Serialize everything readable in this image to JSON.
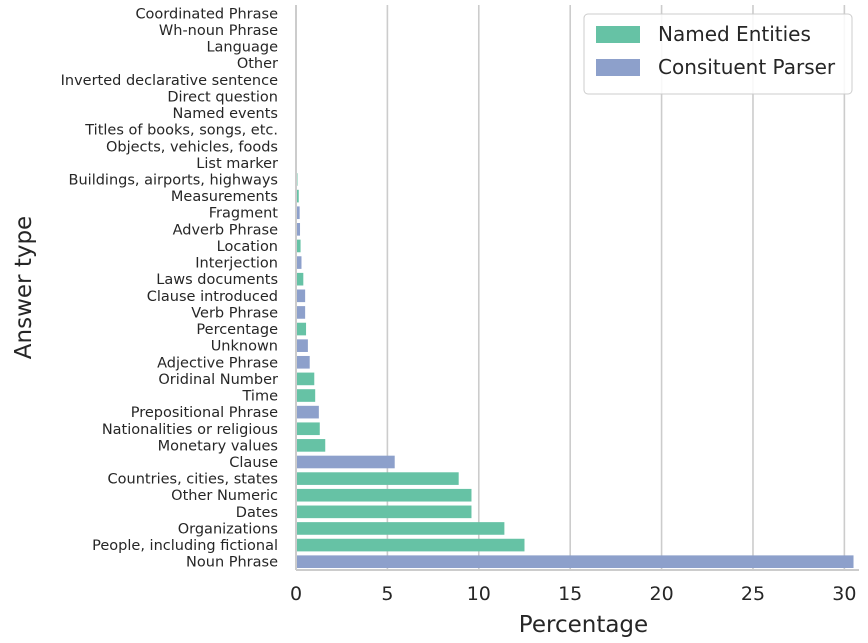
{
  "chart_data": {
    "type": "bar",
    "orientation": "horizontal",
    "xlabel": "Percentage",
    "ylabel": "Answer type",
    "xlim": [
      0,
      30.8
    ],
    "xticks": [
      0,
      5,
      10,
      15,
      20,
      25,
      30
    ],
    "grid": "vertical",
    "legend_position": "top-right",
    "series_colors": {
      "Named Entities": "#66c2a5",
      "Consituent Parser": "#8da0cb"
    },
    "legend": [
      {
        "label": "Named Entities",
        "color": "#66c2a5"
      },
      {
        "label": "Consituent Parser",
        "color": "#8da0cb"
      }
    ],
    "bars": [
      {
        "label": "Coordinated Phrase",
        "value": 0.0,
        "series": "Consituent Parser"
      },
      {
        "label": "Wh-noun Phrase",
        "value": 0.0,
        "series": "Consituent Parser"
      },
      {
        "label": "Language",
        "value": 0.0,
        "series": "Named Entities"
      },
      {
        "label": "Other",
        "value": 0.0,
        "series": "Named Entities"
      },
      {
        "label": "Inverted declarative sentence",
        "value": 0.0,
        "series": "Consituent Parser"
      },
      {
        "label": "Direct question",
        "value": 0.0,
        "series": "Consituent Parser"
      },
      {
        "label": "Named events",
        "value": 0.0,
        "series": "Named Entities"
      },
      {
        "label": "Titles of books, songs, etc.",
        "value": 0.0,
        "series": "Named Entities"
      },
      {
        "label": "Objects, vehicles, foods",
        "value": 0.0,
        "series": "Named Entities"
      },
      {
        "label": "List marker",
        "value": 0.05,
        "series": "Consituent Parser"
      },
      {
        "label": "Buildings, airports, highways",
        "value": 0.08,
        "series": "Named Entities"
      },
      {
        "label": "Measurements",
        "value": 0.15,
        "series": "Named Entities"
      },
      {
        "label": "Fragment",
        "value": 0.2,
        "series": "Consituent Parser"
      },
      {
        "label": "Adverb Phrase",
        "value": 0.22,
        "series": "Consituent Parser"
      },
      {
        "label": "Location",
        "value": 0.25,
        "series": "Named Entities"
      },
      {
        "label": "Interjection",
        "value": 0.3,
        "series": "Consituent Parser"
      },
      {
        "label": "Laws documents",
        "value": 0.4,
        "series": "Named Entities"
      },
      {
        "label": "Clause introduced",
        "value": 0.5,
        "series": "Consituent Parser"
      },
      {
        "label": "Verb Phrase",
        "value": 0.5,
        "series": "Consituent Parser"
      },
      {
        "label": "Percentage",
        "value": 0.55,
        "series": "Named Entities"
      },
      {
        "label": "Unknown",
        "value": 0.65,
        "series": "Consituent Parser"
      },
      {
        "label": "Adjective Phrase",
        "value": 0.75,
        "series": "Consituent Parser"
      },
      {
        "label": "Oridinal Number",
        "value": 1.0,
        "series": "Named Entities"
      },
      {
        "label": "Time",
        "value": 1.05,
        "series": "Named Entities"
      },
      {
        "label": "Prepositional Phrase",
        "value": 1.25,
        "series": "Consituent Parser"
      },
      {
        "label": "Nationalities or religious",
        "value": 1.3,
        "series": "Named Entities"
      },
      {
        "label": "Monetary values",
        "value": 1.6,
        "series": "Named Entities"
      },
      {
        "label": "Clause",
        "value": 5.4,
        "series": "Consituent Parser"
      },
      {
        "label": "Countries, cities, states",
        "value": 8.9,
        "series": "Named Entities"
      },
      {
        "label": "Other Numeric",
        "value": 9.6,
        "series": "Named Entities"
      },
      {
        "label": "Dates",
        "value": 9.6,
        "series": "Named Entities"
      },
      {
        "label": "Organizations",
        "value": 11.4,
        "series": "Named Entities"
      },
      {
        "label": "People, including fictional",
        "value": 12.5,
        "series": "Named Entities"
      },
      {
        "label": "Noun Phrase",
        "value": 30.5,
        "series": "Consituent Parser"
      }
    ]
  }
}
